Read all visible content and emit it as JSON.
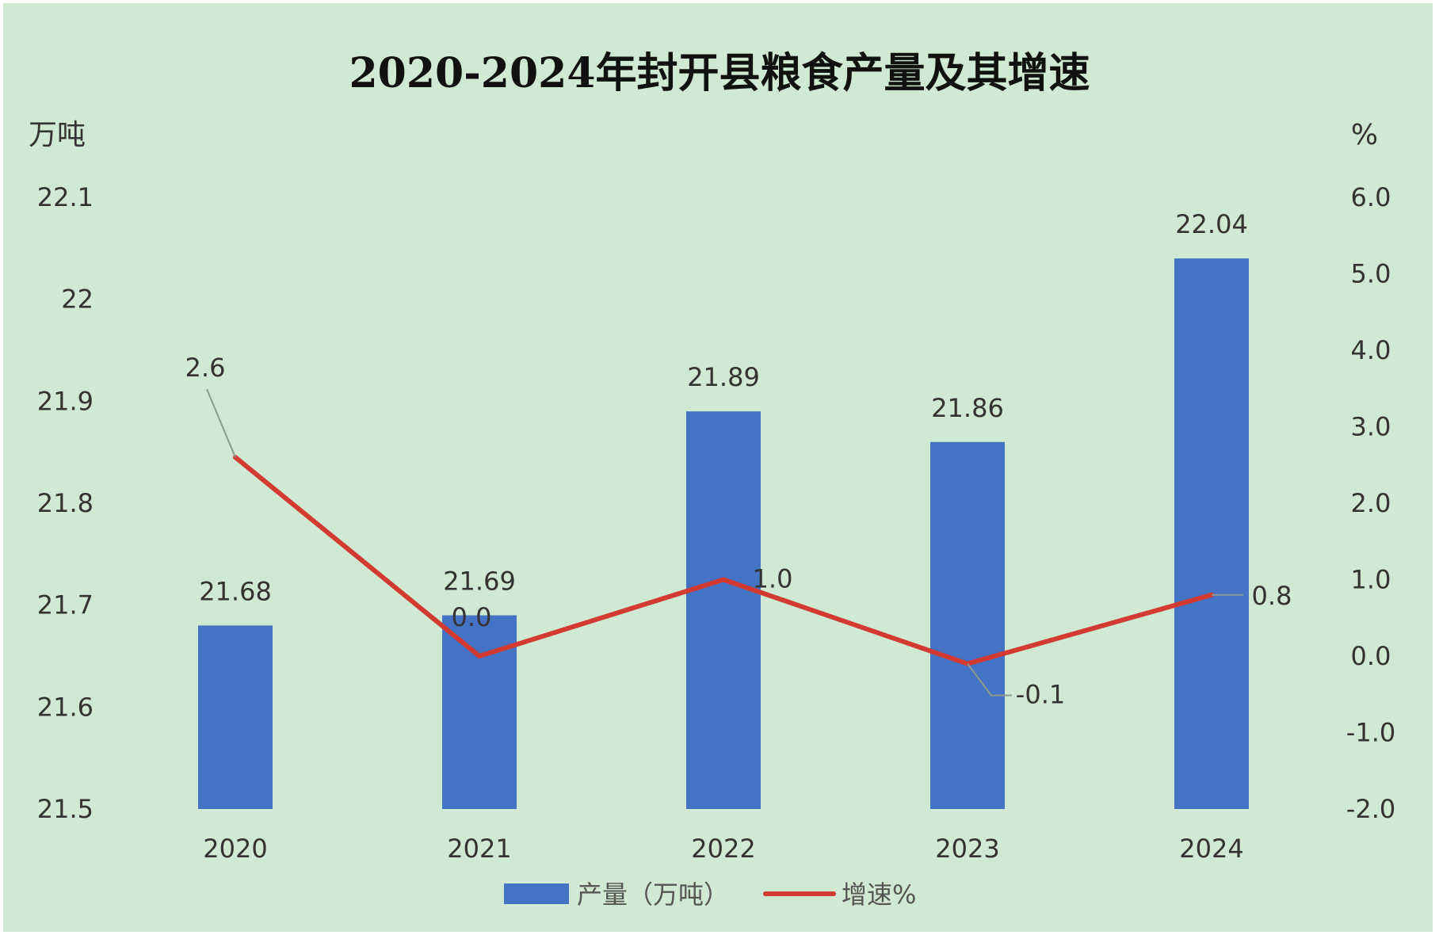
{
  "colors": {
    "background": "#cfe9d2",
    "bar": "#4472c4",
    "line": "#d33b32",
    "leader": "#8a9a8c"
  },
  "chart_data": {
    "type": "bar",
    "title": "2020-2024年封开县粮食产量及其增速",
    "categories": [
      "2020",
      "2021",
      "2022",
      "2023",
      "2024"
    ],
    "y_left": {
      "unit": "万吨",
      "range": [
        21.5,
        22.1
      ],
      "ticks": [
        "21.5",
        "21.6",
        "21.7",
        "21.8",
        "21.9",
        "22",
        "22.1"
      ]
    },
    "y_right": {
      "unit": "%",
      "range": [
        -2.0,
        6.0
      ],
      "ticks": [
        "-2.0",
        "-1.0",
        "0.0",
        "1.0",
        "2.0",
        "3.0",
        "4.0",
        "5.0",
        "6.0"
      ]
    },
    "series": [
      {
        "name": "产量（万吨）",
        "type": "bar",
        "axis": "left",
        "values": [
          21.68,
          21.69,
          21.89,
          21.86,
          22.04
        ],
        "labels": [
          "21.68",
          "21.69",
          "21.89",
          "21.86",
          "22.04"
        ]
      },
      {
        "name": "增速%",
        "type": "line",
        "axis": "right",
        "values": [
          2.6,
          0.0,
          1.0,
          -0.1,
          0.8
        ],
        "labels": [
          "2.6",
          "0.0",
          "1.0",
          "-0.1",
          "0.8"
        ]
      }
    ],
    "legend": "bottom",
    "grid": false
  }
}
